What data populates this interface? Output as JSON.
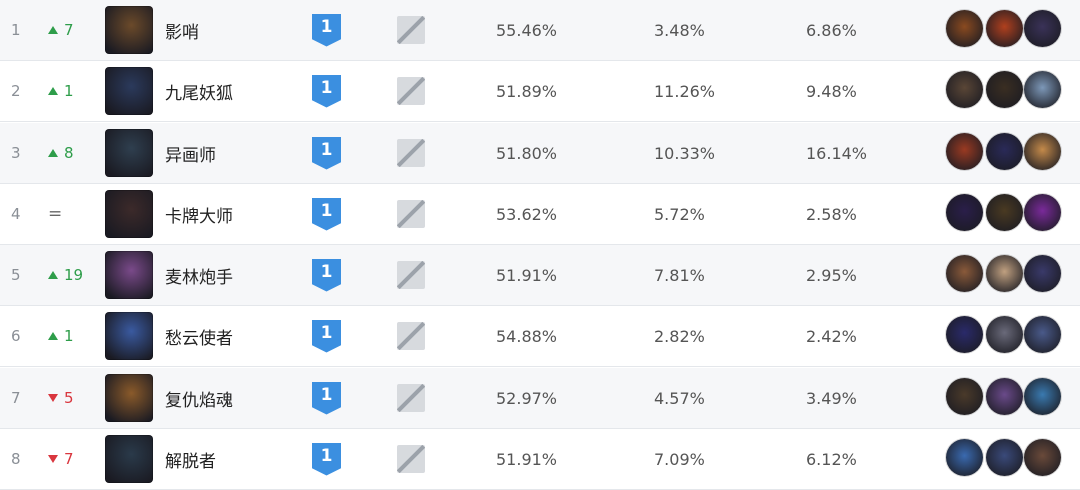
{
  "rows": [
    {
      "rank": "1",
      "trend_dir": "up",
      "trend_num": "7",
      "name": "影哨",
      "tier": "1",
      "win": "55.46%",
      "pick": "3.48%",
      "ban": "6.86%",
      "icon_color": "#6b4a2a",
      "counters": [
        "#8a4a20",
        "#b0401e",
        "#3a3258"
      ]
    },
    {
      "rank": "2",
      "trend_dir": "up",
      "trend_num": "1",
      "name": "九尾妖狐",
      "tier": "1",
      "win": "51.89%",
      "pick": "11.26%",
      "ban": "9.48%",
      "icon_color": "#2b3a5c",
      "counters": [
        "#5a4636",
        "#3a2e22",
        "#7d98b8"
      ]
    },
    {
      "rank": "3",
      "trend_dir": "up",
      "trend_num": "8",
      "name": "异画师",
      "tier": "1",
      "win": "51.80%",
      "pick": "10.33%",
      "ban": "16.14%",
      "icon_color": "#2f3f4f",
      "counters": [
        "#9a3a22",
        "#2a2a58",
        "#c48a4a"
      ]
    },
    {
      "rank": "4",
      "trend_dir": "same",
      "trend_num": "=",
      "name": "卡牌大师",
      "tier": "1",
      "win": "53.62%",
      "pick": "5.72%",
      "ban": "2.58%",
      "icon_color": "#3c2a2a",
      "counters": [
        "#2a1e4a",
        "#4a3a22",
        "#7a2a9a"
      ]
    },
    {
      "rank": "5",
      "trend_dir": "up",
      "trend_num": "19",
      "name": "麦林炮手",
      "tier": "1",
      "win": "51.91%",
      "pick": "7.81%",
      "ban": "2.95%",
      "icon_color": "#7a4a8a",
      "counters": [
        "#8a5a3a",
        "#c0a080",
        "#3a3a6a"
      ]
    },
    {
      "rank": "6",
      "trend_dir": "up",
      "trend_num": "1",
      "name": "愁云使者",
      "tier": "1",
      "win": "54.88%",
      "pick": "2.82%",
      "ban": "2.42%",
      "icon_color": "#3a5aa0",
      "counters": [
        "#2a2a6a",
        "#6a6a7a",
        "#4a5a8a"
      ]
    },
    {
      "rank": "7",
      "trend_dir": "down",
      "trend_num": "5",
      "name": "复仇焰魂",
      "tier": "1",
      "win": "52.97%",
      "pick": "4.57%",
      "ban": "3.49%",
      "icon_color": "#8a5a2a",
      "counters": [
        "#4a3a2a",
        "#6a4a8a",
        "#3a7ab0"
      ]
    },
    {
      "rank": "8",
      "trend_dir": "down",
      "trend_num": "7",
      "name": "解脱者",
      "tier": "1",
      "win": "51.91%",
      "pick": "7.09%",
      "ban": "6.12%",
      "icon_color": "#2a3a4a",
      "counters": [
        "#3a6ab0",
        "#3a4a7a",
        "#6a4a3a"
      ]
    }
  ]
}
